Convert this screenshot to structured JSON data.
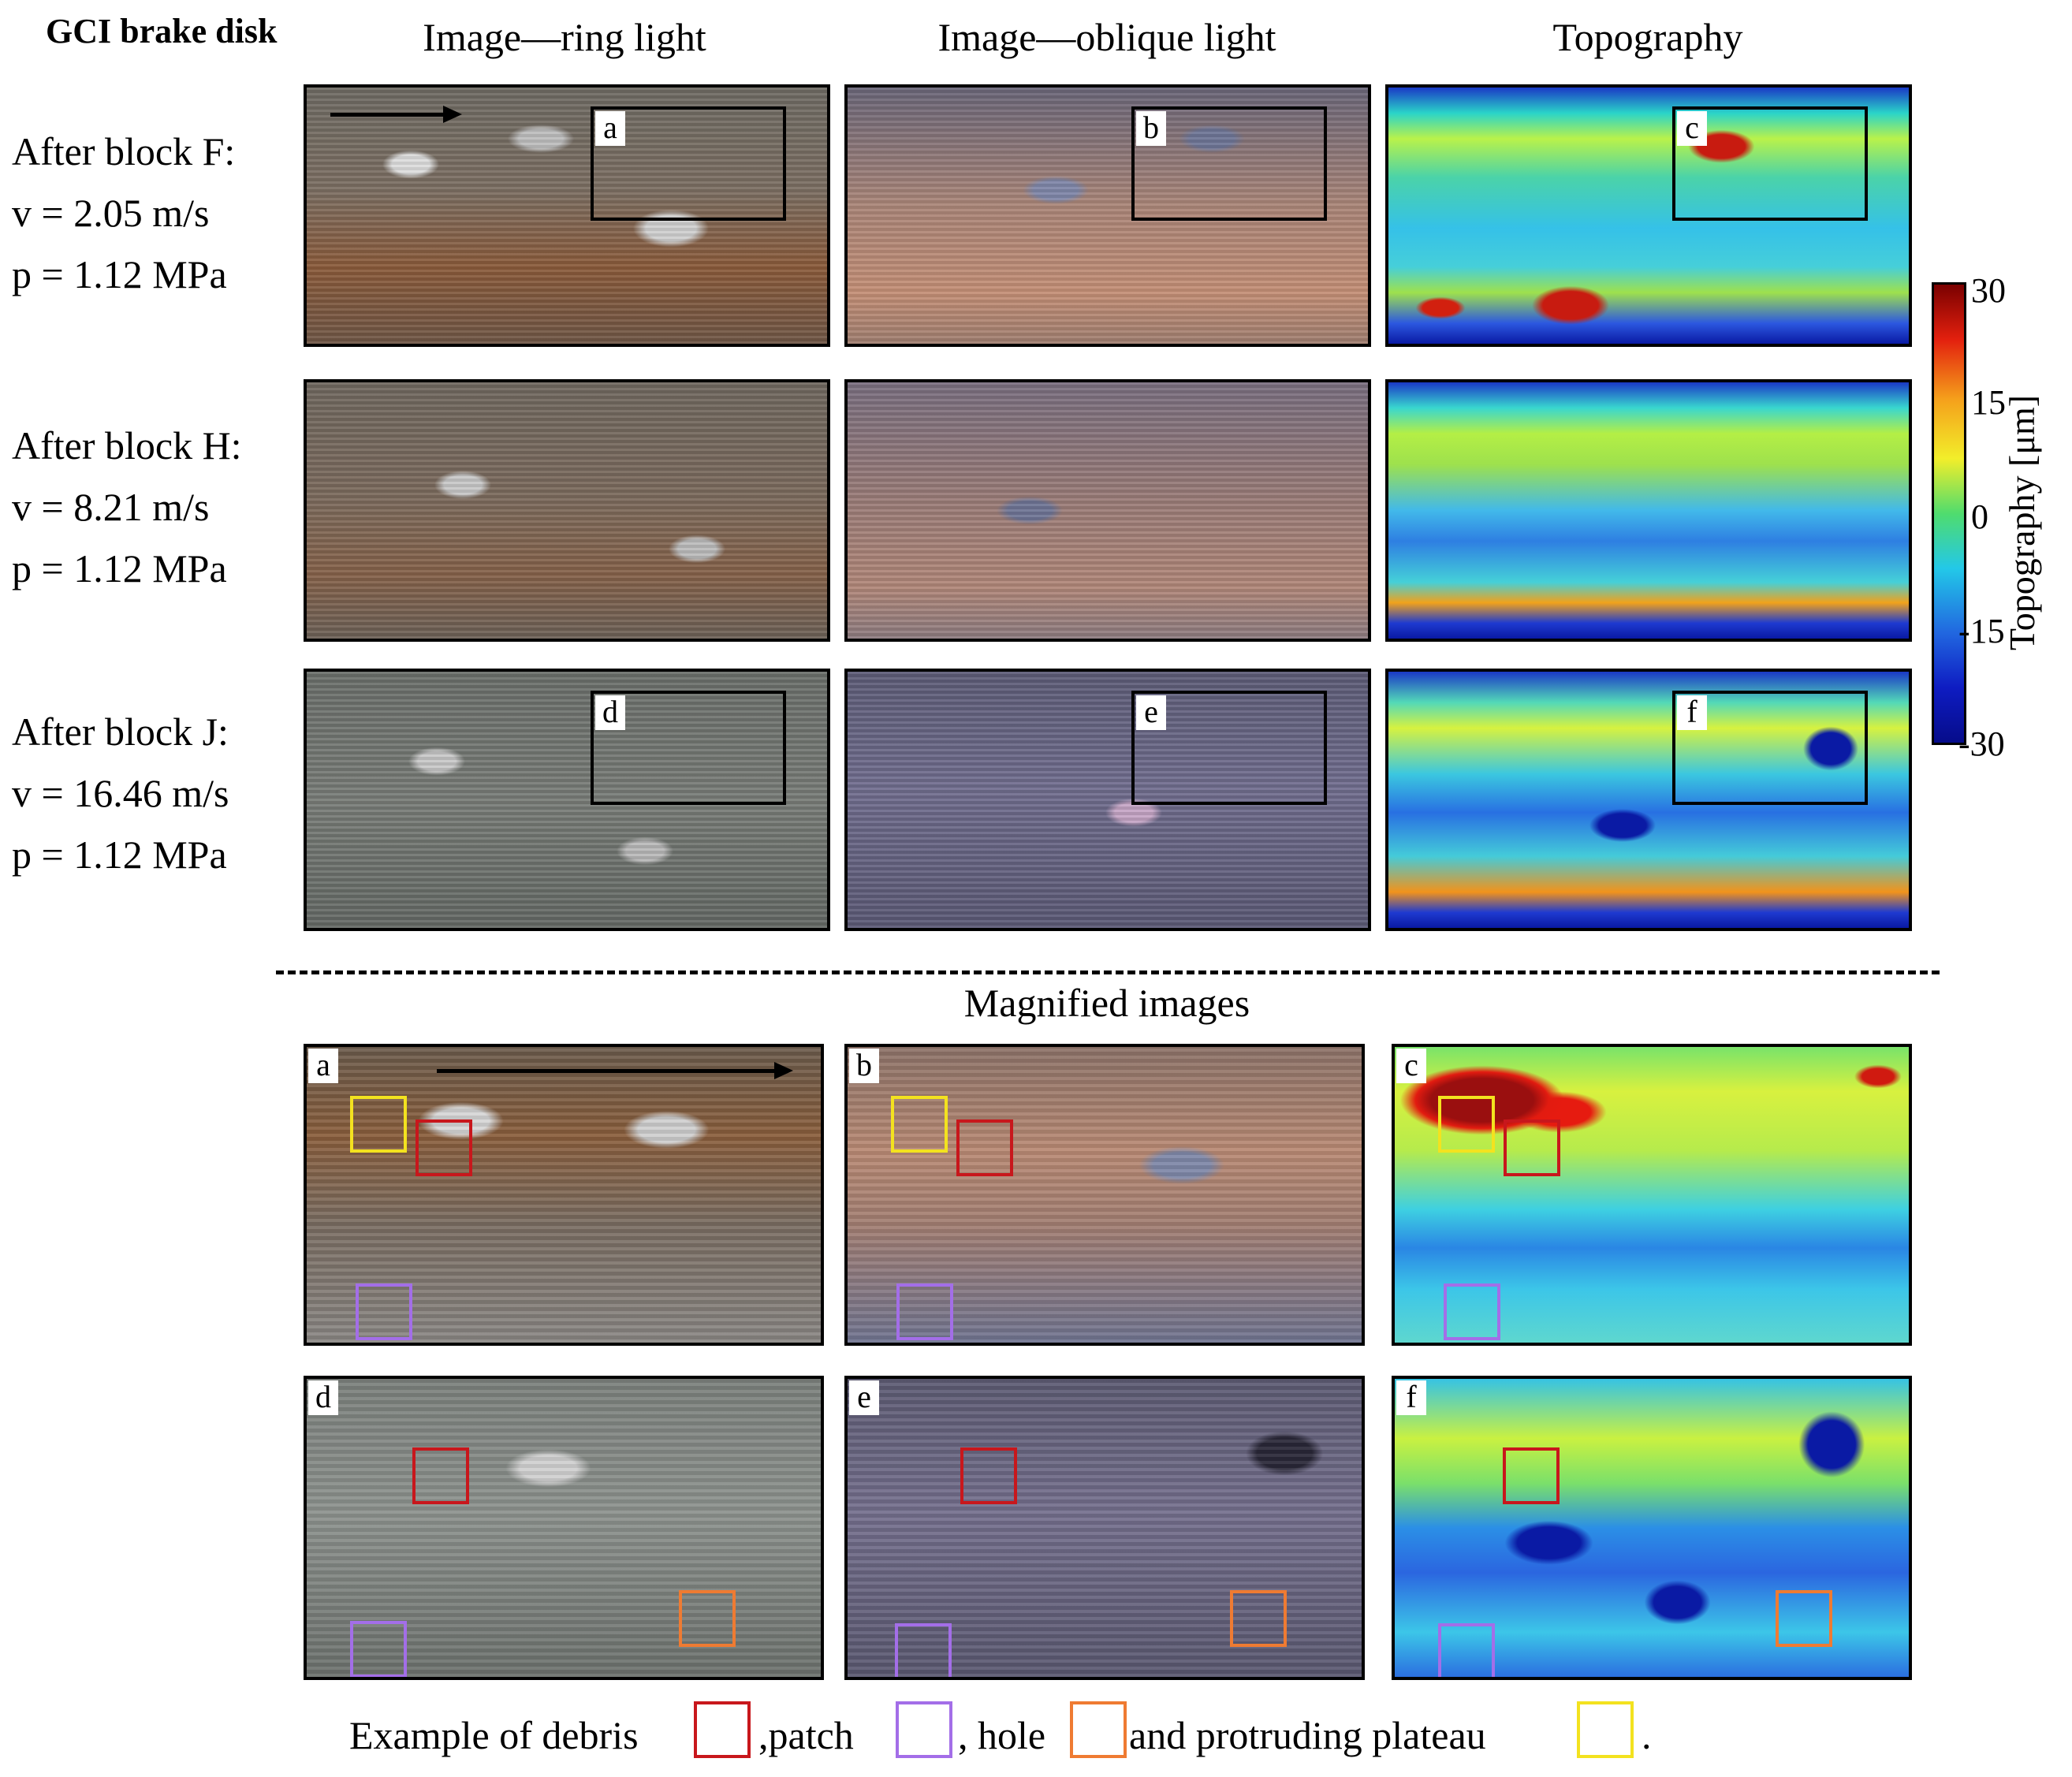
{
  "figure": {
    "title": "GCI brake disk",
    "columns": [
      "Image—ring light",
      "Image—oblique light",
      "Topography"
    ],
    "rows": [
      {
        "block": "After block F:",
        "v": "v = 2.05 m/s",
        "p": "p = 1.12 MPa"
      },
      {
        "block": "After block H:",
        "v": "v = 8.21 m/s",
        "p": "p = 1.12 MPa"
      },
      {
        "block": "After block J:",
        "v": "v = 16.46 m/s",
        "p": "p = 1.12 MPa"
      }
    ],
    "panel_labels": [
      "a",
      "b",
      "c",
      "d",
      "e",
      "f"
    ],
    "magnified_title": "Magnified images"
  },
  "colorbar": {
    "label": "Topography [μm]",
    "ticks": [
      "30",
      "15",
      "0",
      "-15",
      "-30"
    ],
    "range": [
      -30,
      30
    ]
  },
  "legend": {
    "prefix": "Example of debris",
    "patch": ",patch",
    "hole": ", hole",
    "plateau": "and protruding plateau",
    "end": ".",
    "colors": {
      "debris": "#c8171c",
      "patch": "#a36ee8",
      "hole": "#ef7b32",
      "plateau": "#f3e21f"
    }
  }
}
